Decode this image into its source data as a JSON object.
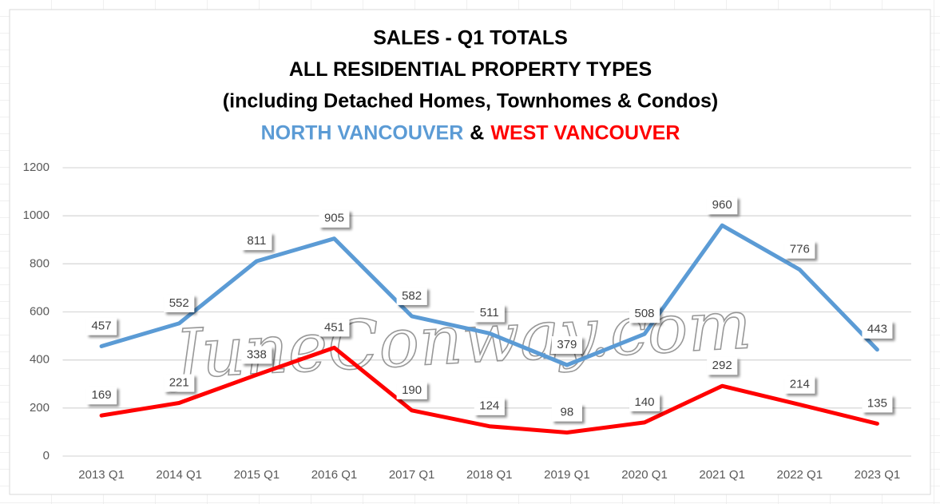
{
  "chart_data": {
    "type": "line",
    "title": [
      "SALES - Q1 TOTALS",
      "ALL RESIDENTIAL PROPERTY TYPES",
      "(including Detached Homes, Townhomes & Condos)"
    ],
    "title_connector": "&",
    "watermark": "JuneConway.com",
    "categories": [
      "2013 Q1",
      "2014 Q1",
      "2015 Q1",
      "2016 Q1",
      "2017 Q1",
      "2018 Q1",
      "2019 Q1",
      "2020 Q1",
      "2021 Q1",
      "2022 Q1",
      "2023 Q1"
    ],
    "series": [
      {
        "name": "NORTH VANCOUVER",
        "color": "#5b9bd5",
        "values": [
          457,
          552,
          811,
          905,
          582,
          511,
          379,
          508,
          960,
          776,
          443
        ]
      },
      {
        "name": "WEST VANCOUVER",
        "color": "#ff0000",
        "values": [
          169,
          221,
          338,
          451,
          190,
          124,
          98,
          140,
          292,
          214,
          135
        ]
      }
    ],
    "ylim": [
      0,
      1200
    ],
    "yticks": [
      0,
      200,
      400,
      600,
      800,
      1000,
      1200
    ],
    "grid": true
  }
}
